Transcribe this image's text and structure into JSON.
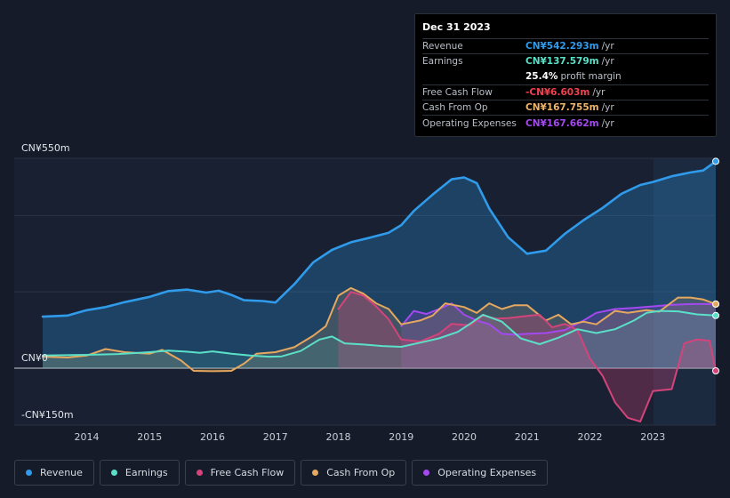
{
  "tooltip": {
    "date": "Dec 31 2023",
    "rows": [
      {
        "label": "Revenue",
        "value": "CN¥542.293m",
        "unit": "/yr",
        "color": "#2f9bea"
      },
      {
        "label": "Earnings",
        "value": "CN¥137.579m",
        "unit": "/yr",
        "color": "#5be0c8"
      },
      {
        "label": "",
        "value": "25.4%",
        "unit": "profit margin",
        "color": "#ffffff"
      },
      {
        "label": "Free Cash Flow",
        "value": "-CN¥6.603m",
        "unit": "/yr",
        "color": "#f0424e"
      },
      {
        "label": "Cash From Op",
        "value": "CN¥167.755m",
        "unit": "/yr",
        "color": "#f0b468"
      },
      {
        "label": "Operating Expenses",
        "value": "CN¥167.662m",
        "unit": "/yr",
        "color": "#a449f0"
      }
    ]
  },
  "chart_data": {
    "type": "area",
    "yaxis_labels": {
      "top": "CN¥550m",
      "zero": "CN¥0",
      "bottom": "-CN¥150m"
    },
    "ylim": [
      -150,
      550
    ],
    "xlim": [
      2013.3,
      2024.0
    ],
    "x_ticks": [
      "2014",
      "2015",
      "2016",
      "2017",
      "2018",
      "2019",
      "2020",
      "2021",
      "2022",
      "2023"
    ],
    "legend": [
      {
        "name": "Revenue",
        "color": "#2f9bea"
      },
      {
        "name": "Earnings",
        "color": "#5be0c8"
      },
      {
        "name": "Free Cash Flow",
        "color": "#d4447a"
      },
      {
        "name": "Cash From Op",
        "color": "#e6a85e"
      },
      {
        "name": "Operating Expenses",
        "color": "#a449f0"
      }
    ],
    "series": [
      {
        "name": "Revenue",
        "color": "#2f9bea",
        "x": [
          2013.3,
          2013.7,
          2014.0,
          2014.3,
          2014.6,
          2015.0,
          2015.3,
          2015.6,
          2015.9,
          2016.1,
          2016.3,
          2016.5,
          2016.8,
          2017.0,
          2017.3,
          2017.6,
          2017.9,
          2018.2,
          2018.5,
          2018.8,
          2019.0,
          2019.2,
          2019.5,
          2019.8,
          2020.0,
          2020.2,
          2020.4,
          2020.7,
          2021.0,
          2021.3,
          2021.6,
          2021.9,
          2022.2,
          2022.5,
          2022.8,
          2023.0,
          2023.3,
          2023.6,
          2023.8,
          2024.0
        ],
        "values": [
          135,
          138,
          152,
          160,
          173,
          187,
          202,
          206,
          198,
          203,
          192,
          178,
          176,
          172,
          220,
          277,
          310,
          330,
          342,
          355,
          375,
          412,
          455,
          495,
          500,
          485,
          418,
          343,
          300,
          308,
          352,
          388,
          420,
          457,
          480,
          488,
          503,
          513,
          518,
          542
        ]
      },
      {
        "name": "Earnings",
        "color": "#5be0c8",
        "x": [
          2013.3,
          2014.0,
          2014.5,
          2015.0,
          2015.3,
          2015.6,
          2015.8,
          2016.0,
          2016.3,
          2016.6,
          2016.9,
          2017.1,
          2017.4,
          2017.7,
          2017.9,
          2018.1,
          2018.4,
          2018.7,
          2019.0,
          2019.3,
          2019.6,
          2019.9,
          2020.1,
          2020.3,
          2020.6,
          2020.9,
          2021.2,
          2021.5,
          2021.8,
          2022.1,
          2022.4,
          2022.7,
          2022.9,
          2023.1,
          2023.4,
          2023.7,
          2024.0
        ],
        "values": [
          33,
          35,
          37,
          42,
          46,
          43,
          40,
          44,
          38,
          33,
          30,
          31,
          45,
          75,
          83,
          65,
          62,
          58,
          56,
          67,
          78,
          95,
          117,
          140,
          122,
          78,
          63,
          80,
          102,
          92,
          102,
          125,
          145,
          150,
          149,
          141,
          138
        ]
      },
      {
        "name": "Free Cash Flow",
        "color": "#d4447a",
        "x": [
          2018.0,
          2018.2,
          2018.4,
          2018.6,
          2018.8,
          2019.0,
          2019.3,
          2019.6,
          2019.8,
          2020.1,
          2020.3,
          2020.5,
          2020.7,
          2021.0,
          2021.2,
          2021.4,
          2021.6,
          2021.8,
          2022.0,
          2022.2,
          2022.4,
          2022.6,
          2022.8,
          2023.0,
          2023.3,
          2023.5,
          2023.7,
          2023.9,
          2024.0
        ],
        "values": [
          155,
          200,
          190,
          162,
          128,
          75,
          70,
          90,
          116,
          112,
          138,
          130,
          131,
          137,
          140,
          107,
          116,
          100,
          25,
          -20,
          -90,
          -130,
          -140,
          -60,
          -55,
          65,
          75,
          72,
          -7
        ]
      },
      {
        "name": "Cash From Op",
        "color": "#e6a85e",
        "x": [
          2013.3,
          2013.7,
          2014.0,
          2014.3,
          2014.6,
          2015.0,
          2015.2,
          2015.5,
          2015.7,
          2016.0,
          2016.3,
          2016.5,
          2016.7,
          2017.0,
          2017.3,
          2017.6,
          2017.8,
          2018.0,
          2018.2,
          2018.4,
          2018.6,
          2018.8,
          2019.0,
          2019.3,
          2019.5,
          2019.7,
          2020.0,
          2020.2,
          2020.4,
          2020.6,
          2020.8,
          2021.0,
          2021.3,
          2021.5,
          2021.7,
          2021.9,
          2022.1,
          2022.4,
          2022.6,
          2022.9,
          2023.1,
          2023.4,
          2023.6,
          2023.8,
          2024.0
        ],
        "values": [
          30,
          28,
          33,
          50,
          42,
          38,
          48,
          20,
          -7,
          -8,
          -7,
          12,
          38,
          42,
          55,
          85,
          110,
          190,
          210,
          195,
          170,
          155,
          115,
          125,
          138,
          170,
          160,
          145,
          170,
          155,
          165,
          165,
          125,
          140,
          115,
          122,
          115,
          150,
          145,
          152,
          148,
          185,
          185,
          180,
          168
        ]
      },
      {
        "name": "Operating Expenses",
        "color": "#a449f0",
        "x": [
          2019.0,
          2019.2,
          2019.4,
          2019.6,
          2019.8,
          2020.0,
          2020.2,
          2020.4,
          2020.6,
          2020.8,
          2021.0,
          2021.3,
          2021.6,
          2021.9,
          2022.1,
          2022.4,
          2022.7,
          2023.0,
          2023.3,
          2023.6,
          2023.9,
          2024.0
        ],
        "values": [
          110,
          150,
          142,
          155,
          170,
          140,
          125,
          115,
          90,
          88,
          90,
          92,
          100,
          125,
          145,
          155,
          158,
          162,
          166,
          168,
          168,
          168
        ]
      }
    ]
  },
  "legend_labels": [
    "Revenue",
    "Earnings",
    "Free Cash Flow",
    "Cash From Op",
    "Operating Expenses"
  ]
}
